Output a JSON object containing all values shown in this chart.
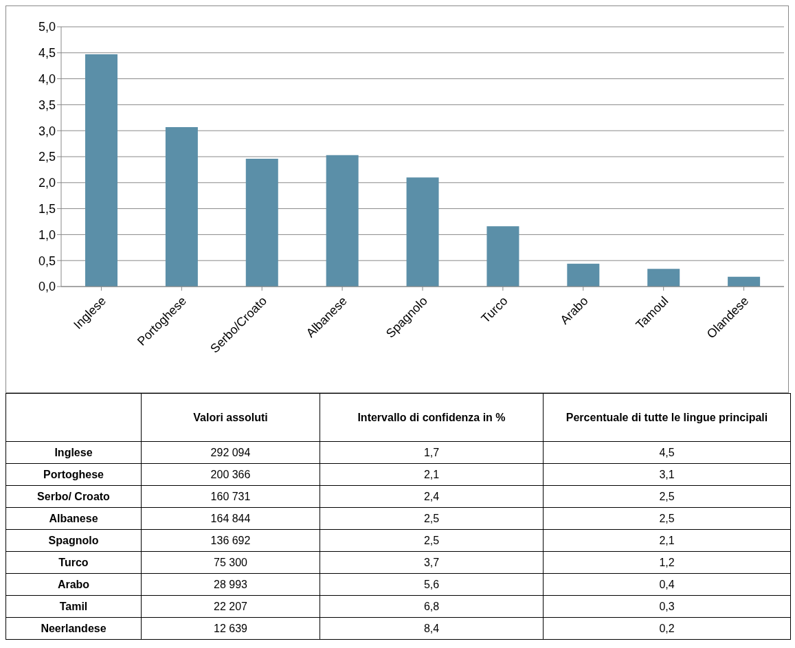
{
  "chart_data": [
    {
      "type": "bar",
      "categories": [
        "Inglese",
        "Portoghese",
        "Serbo/Croato",
        "Albanese",
        "Spagnolo",
        "Turco",
        "Arabo",
        "Tamoul",
        "Olandese"
      ],
      "values": [
        4.47,
        3.07,
        2.46,
        2.53,
        2.1,
        1.16,
        0.44,
        0.34,
        0.19
      ],
      "color": "#5b8fa8",
      "ylim": [
        0,
        5
      ],
      "yticks": [
        {
          "value": 0,
          "label": "0,0"
        },
        {
          "value": 0.5,
          "label": "0,5"
        },
        {
          "value": 1,
          "label": "1,0"
        },
        {
          "value": 1.5,
          "label": "1,5"
        },
        {
          "value": 2,
          "label": "2,0"
        },
        {
          "value": 2.5,
          "label": "2,5"
        },
        {
          "value": 3,
          "label": "3,0"
        },
        {
          "value": 3.5,
          "label": "3,5"
        },
        {
          "value": 4,
          "label": "4,0"
        },
        {
          "value": 4.5,
          "label": "4,5"
        },
        {
          "value": 5,
          "label": "5,0"
        }
      ],
      "grid": "y"
    },
    {
      "type": "other",
      "categories": [
        "Inglese",
        "Portoghese",
        "Serbo/ Croato",
        "Albanese",
        "Spagnolo",
        "Turco",
        "Arabo",
        "Tamil",
        "Neerlandese"
      ],
      "data_labels": true,
      "series": [
        {
          "name": "Valori assoluti",
          "values": [
            292094,
            200366,
            160731,
            164844,
            136692,
            75300,
            28993,
            22207,
            12639
          ]
        },
        {
          "name": "Intervallo di confidenza in %",
          "values": [
            1.7,
            2.1,
            2.4,
            2.5,
            2.5,
            3.7,
            5.6,
            6.8,
            8.4
          ],
          "value_labels": [
            "1,7",
            "2,1",
            "2,4",
            "2,5",
            "2,5",
            "3,7",
            "5,6",
            "6,8",
            "8,4"
          ]
        },
        {
          "name": "Percentuale di tutte le lingue principali",
          "values": [
            4.5,
            3.1,
            2.5,
            2.5,
            2.1,
            1.2,
            0.4,
            0.3,
            0.2
          ],
          "value_labels": [
            "4,5",
            "3,1",
            "2,5",
            "2,5",
            "2,1",
            "1,2",
            "0,4",
            "0,3",
            "0,2"
          ]
        }
      ]
    }
  ]
}
